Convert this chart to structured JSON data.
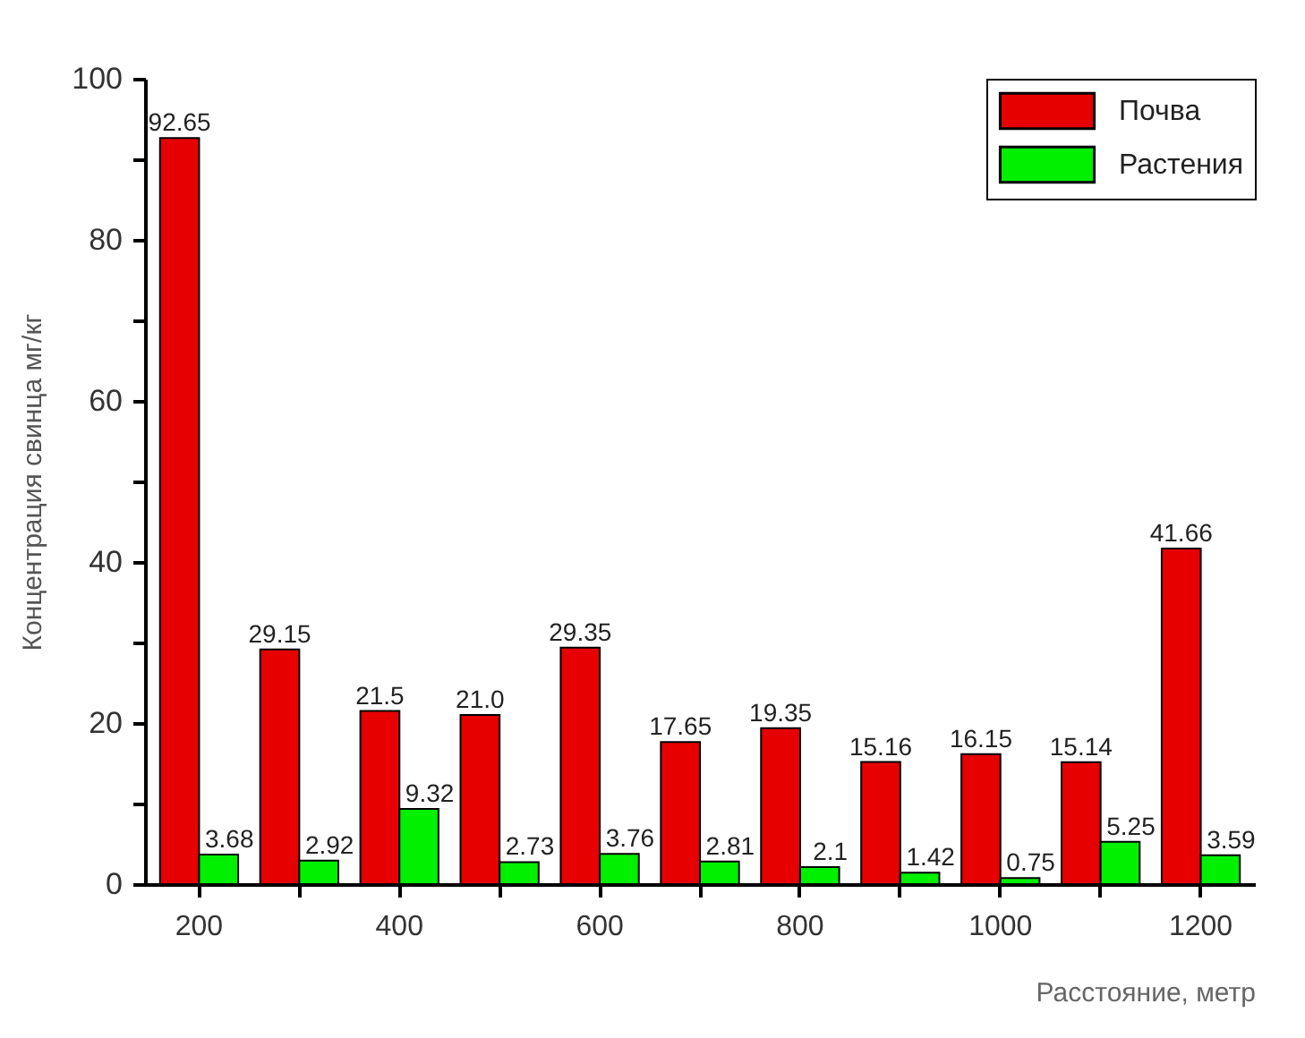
{
  "chart_data": {
    "type": "bar",
    "categories": [
      "200",
      null,
      "400",
      null,
      "600",
      null,
      "800",
      null,
      "1000",
      null,
      "1200"
    ],
    "xlabel": "Расстояние, метр",
    "ylabel": "Концентрация свинца мг/кг",
    "ylim": [
      0,
      100
    ],
    "yticks": [
      0,
      {
        "value": 10,
        "label": null
      },
      20,
      {
        "value": 30,
        "label": null
      },
      40,
      {
        "value": 50,
        "label": null
      },
      60,
      {
        "value": 70,
        "label": null
      },
      80,
      {
        "value": 90,
        "label": null
      },
      100
    ],
    "legend": "top right",
    "series": [
      {
        "name": "Почва",
        "color": "#e60000",
        "values": [
          92.65,
          29.15,
          21.5,
          21.0,
          29.35,
          17.65,
          19.35,
          15.16,
          16.15,
          15.14,
          41.66
        ],
        "value_labels": [
          "92.65",
          "29.15",
          "21.5",
          "21.0",
          "29.35",
          "17.65",
          "19.35",
          "15.16",
          "16.15",
          "15.14",
          "41.66"
        ]
      },
      {
        "name": "Растения",
        "color": "#00f000",
        "values": [
          3.68,
          2.92,
          9.32,
          2.73,
          3.76,
          2.81,
          2.1,
          1.42,
          0.75,
          5.25,
          3.59
        ],
        "value_labels": [
          "3.68",
          "2.92",
          "9.32",
          "2.73",
          "3.76",
          "2.81",
          "2.1",
          "1.42",
          "0.75",
          "5.25",
          "3.59"
        ]
      }
    ]
  }
}
